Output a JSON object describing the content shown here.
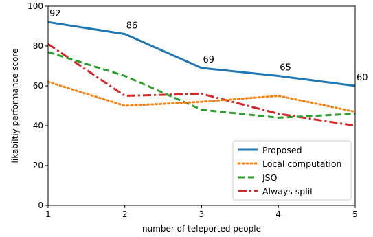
{
  "chart_data": {
    "type": "line",
    "title": "",
    "xlabel": "number of teleported people",
    "ylabel": "likabiltiy performance score",
    "x": [
      1,
      2,
      3,
      4,
      5
    ],
    "xlim": [
      1,
      5
    ],
    "ylim": [
      0,
      100
    ],
    "xticks": [
      1,
      2,
      3,
      4,
      5
    ],
    "yticks": [
      0,
      20,
      40,
      60,
      80,
      100
    ],
    "grid": false,
    "legend_position": "bottom-right",
    "series": [
      {
        "name": "Proposed",
        "values": [
          92,
          86,
          69,
          65,
          60
        ],
        "color": "#1f77b4",
        "dash": "solid",
        "show_labels": true
      },
      {
        "name": "Local computation",
        "values": [
          62,
          50,
          52,
          55,
          47
        ],
        "color": "#ff7f0e",
        "dash": "dotted",
        "show_labels": false
      },
      {
        "name": "JSQ",
        "values": [
          77,
          65,
          48,
          44,
          46
        ],
        "color": "#2ca02c",
        "dash": "dashed",
        "show_labels": false
      },
      {
        "name": "Always split",
        "values": [
          81,
          55,
          56,
          46,
          40
        ],
        "color": "#d62728",
        "dash": "dashdot",
        "show_labels": false
      }
    ]
  }
}
